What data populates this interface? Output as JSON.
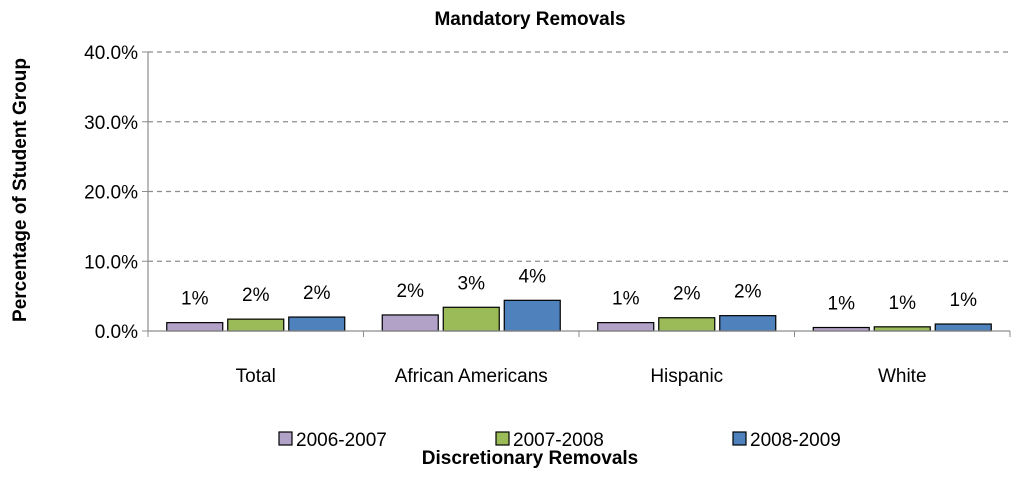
{
  "chart_data": {
    "type": "bar",
    "title": "Mandatory Removals",
    "xlabel": "Discretionary Removals",
    "ylabel": "Percentage of Student Group",
    "categories": [
      "Total",
      "African Americans",
      "Hispanic",
      "White"
    ],
    "series": [
      {
        "name": "2006-2007",
        "color": "#b3a2c7",
        "values": [
          1.2,
          2.3,
          1.2,
          0.5
        ],
        "labels": [
          "1%",
          "2%",
          "1%",
          "1%"
        ]
      },
      {
        "name": "2007-2008",
        "color": "#9bbb59",
        "values": [
          1.7,
          3.4,
          1.9,
          0.6
        ],
        "labels": [
          "2%",
          "3%",
          "2%",
          "1%"
        ]
      },
      {
        "name": "2008-2009",
        "color": "#4f81bd",
        "values": [
          2.0,
          4.4,
          2.2,
          1.0
        ],
        "labels": [
          "2%",
          "4%",
          "2%",
          "1%"
        ]
      }
    ],
    "ylim": [
      0,
      40
    ],
    "yticks": [
      "0.0%",
      "10.0%",
      "20.0%",
      "30.0%",
      "40.0%"
    ],
    "grid": true,
    "legend_position": "bottom"
  }
}
